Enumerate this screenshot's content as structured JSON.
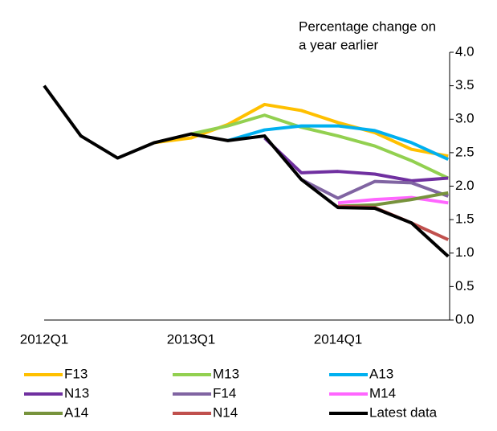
{
  "chart_data": {
    "type": "line",
    "ylabel": [
      "Percentage change on",
      "a year earlier"
    ],
    "categories": [
      "2012Q1",
      null,
      null,
      null,
      "2013Q1",
      null,
      null,
      null,
      "2014Q1",
      null,
      null,
      null
    ],
    "ylim": [
      0,
      4
    ],
    "yticks": [
      {
        "value": 0,
        "label": "0.0"
      },
      0.5,
      {
        "value": 1,
        "label": "1.0"
      },
      1.5,
      {
        "value": 2,
        "label": "2.0"
      },
      2.5,
      {
        "value": 3,
        "label": "3.0"
      },
      3.5,
      {
        "value": 4,
        "label": "4.0"
      }
    ],
    "series": [
      {
        "name": "F13",
        "color": "#ffc000",
        "values": [
          null,
          null,
          null,
          2.65,
          2.72,
          2.92,
          3.22,
          3.13,
          2.95,
          2.8,
          2.55,
          2.45
        ]
      },
      {
        "name": "M13",
        "color": "#92d050",
        "values": [
          null,
          null,
          null,
          null,
          2.78,
          2.9,
          3.06,
          2.88,
          2.75,
          2.6,
          2.38,
          2.12
        ]
      },
      {
        "name": "A13",
        "color": "#00b0f0",
        "values": [
          null,
          null,
          null,
          null,
          null,
          2.68,
          2.84,
          2.9,
          2.9,
          2.83,
          2.65,
          2.4
        ]
      },
      {
        "name": "N13",
        "color": "#7030a0",
        "values": [
          null,
          null,
          null,
          null,
          null,
          null,
          2.72,
          2.2,
          2.22,
          2.18,
          2.08,
          2.12
        ]
      },
      {
        "name": "F14",
        "color": "#8064a2",
        "values": [
          null,
          null,
          null,
          null,
          null,
          null,
          null,
          2.1,
          1.82,
          2.07,
          2.05,
          1.85
        ]
      },
      {
        "name": "M14",
        "color": "#ff66ff",
        "values": [
          null,
          null,
          null,
          null,
          null,
          null,
          null,
          null,
          1.75,
          1.8,
          1.83,
          1.75
        ]
      },
      {
        "name": "A14",
        "color": "#77933c",
        "values": [
          null,
          null,
          null,
          null,
          null,
          null,
          null,
          null,
          1.7,
          1.72,
          1.8,
          1.9
        ]
      },
      {
        "name": "N14",
        "color": "#c0504d",
        "values": [
          null,
          null,
          null,
          null,
          null,
          null,
          null,
          null,
          1.7,
          1.68,
          1.45,
          1.2
        ]
      },
      {
        "name": "Latest data",
        "color": "#000000",
        "values": [
          3.5,
          2.75,
          2.42,
          2.65,
          2.78,
          2.68,
          2.75,
          2.1,
          1.68,
          1.67,
          1.45,
          0.95
        ]
      }
    ]
  }
}
